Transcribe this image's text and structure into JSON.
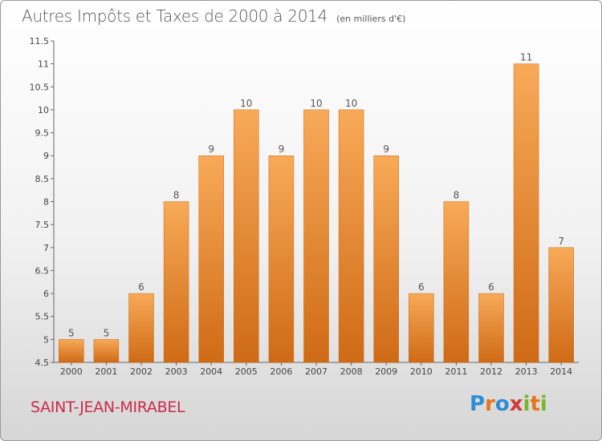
{
  "header": {
    "title": "Autres Impôts et Taxes de 2000 à 2014",
    "unit": "(en milliers d'€)"
  },
  "footer": {
    "commune": "SAINT-JEAN-MIRABEL",
    "logo_letters": [
      "P",
      "r",
      "o",
      "x",
      "i",
      "t",
      "i"
    ],
    "logo_colors": [
      "#2e8dd6",
      "#e8741a",
      "#2e8dd6",
      "#d23a3a",
      "#7bb52e",
      "#e8741a",
      "#7bb52e"
    ]
  },
  "chart_data": {
    "type": "bar",
    "title": "Autres Impôts et Taxes de 2000 à 2014",
    "categories": [
      "2000",
      "2001",
      "2002",
      "2003",
      "2004",
      "2005",
      "2006",
      "2007",
      "2008",
      "2009",
      "2010",
      "2011",
      "2012",
      "2013",
      "2014"
    ],
    "values": [
      5,
      5,
      6,
      8,
      9,
      10,
      9,
      10,
      10,
      9,
      6,
      8,
      6,
      11,
      7
    ],
    "ylim": [
      4.5,
      11.5
    ],
    "yticks": [
      "4.5",
      "5",
      "5.5",
      "6",
      "6.5",
      "7",
      "7.5",
      "8",
      "8.5",
      "9",
      "9.5",
      "10",
      "10.5",
      "11",
      "11.5"
    ],
    "grid": false,
    "bar_color_light": "#f8aa58",
    "bar_color_dark": "#cf6a15"
  }
}
